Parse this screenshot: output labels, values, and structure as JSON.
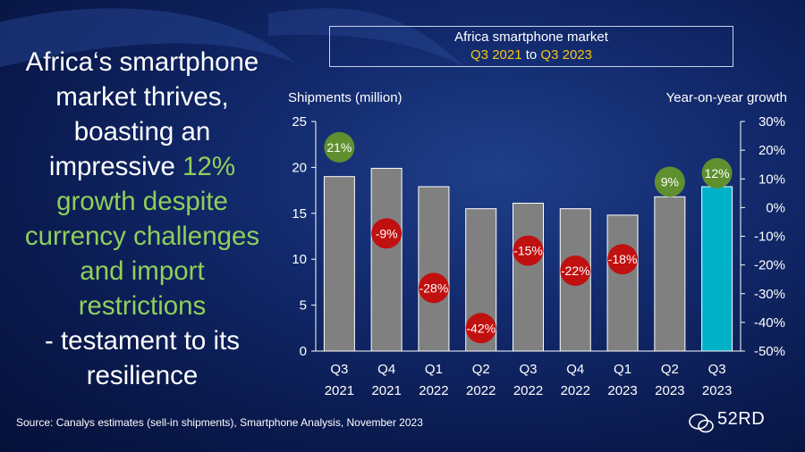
{
  "headline": {
    "line1": "Africa‘s smartphone",
    "line2": "market thrives,",
    "line3": "boasting an",
    "line4_pre": "impressive ",
    "line4_hl": "12%",
    "line5": "growth despite",
    "line6": "currency challenges",
    "line7": "and import",
    "line8": "restrictions",
    "line9": "- testament to its",
    "line10": "resilience"
  },
  "title_box": {
    "line1": "Africa smartphone market",
    "from": "Q3 2021",
    "to_word": " to ",
    "to": "Q3 2023"
  },
  "source": "Source: Canalys estimates (sell-in shipments), Smartphone Analysis, November 2023",
  "logo_text": "52RD",
  "colors": {
    "bar": "#808080",
    "bar_highlight": "#00b2c7",
    "positive_bubble": "#5f8f2f",
    "negative_bubble": "#c01010",
    "headline_accent": "#8fcf5a",
    "title_accent": "#f5c518"
  },
  "chart_data": {
    "type": "bar",
    "categories": [
      [
        "Q3",
        "2021"
      ],
      [
        "Q4",
        "2021"
      ],
      [
        "Q1",
        "2022"
      ],
      [
        "Q2",
        "2022"
      ],
      [
        "Q3",
        "2022"
      ],
      [
        "Q4",
        "2022"
      ],
      [
        "Q1",
        "2023"
      ],
      [
        "Q2",
        "2023"
      ],
      [
        "Q3",
        "2023"
      ]
    ],
    "series": [
      {
        "name": "Shipments (million)",
        "axis": "left",
        "values": [
          19.0,
          19.9,
          17.9,
          15.5,
          16.1,
          15.5,
          14.8,
          16.8,
          17.9
        ]
      },
      {
        "name": "Year-on-year growth",
        "axis": "right",
        "values": [
          21,
          -9,
          -28,
          -42,
          -15,
          -22,
          -18,
          9,
          12
        ],
        "labels": [
          "21%",
          "-9%",
          "-28%",
          "-42%",
          "-15%",
          "-22%",
          "-18%",
          "9%",
          "12%"
        ]
      }
    ],
    "ylabel_left": "Shipments (million)",
    "ylabel_right": "Year-on-year growth",
    "ylim_left": [
      0,
      25
    ],
    "yticks_left": [
      "0",
      "5",
      "10",
      "15",
      "20",
      "25"
    ],
    "ylim_right": [
      -50,
      30
    ],
    "yticks_right": [
      "-50%",
      "-40%",
      "-30%",
      "-20%",
      "-10%",
      "0%",
      "10%",
      "20%",
      "30%"
    ],
    "highlight_index": 8,
    "grid": false
  }
}
